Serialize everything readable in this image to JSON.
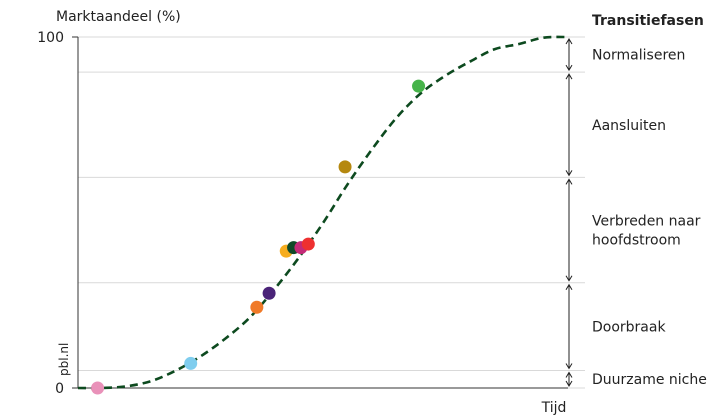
{
  "chart_data": {
    "type": "line",
    "ylabel": "Marktaandeel (%)",
    "xlabel": "Tijd",
    "y_ticks": [
      "0",
      "100"
    ],
    "ylim": [
      0,
      100
    ],
    "xlim": [
      0,
      100
    ],
    "curve": {
      "x": [
        0,
        5,
        10,
        15,
        20,
        25,
        30,
        35,
        40,
        45,
        50,
        55,
        60,
        65,
        70,
        75,
        80,
        85,
        90,
        95,
        100
      ],
      "y": [
        0,
        0,
        0.5,
        2,
        5,
        9,
        14,
        20,
        28,
        37,
        47,
        58,
        68,
        77,
        84,
        89,
        93,
        96.5,
        98,
        99.8,
        100
      ]
    },
    "points": [
      {
        "x": 4,
        "y": 0,
        "color": "#e991b9"
      },
      {
        "x": 23,
        "y": 7,
        "color": "#7fcdee"
      },
      {
        "x": 36.5,
        "y": 23,
        "color": "#f07a28"
      },
      {
        "x": 39,
        "y": 27,
        "color": "#4a2378"
      },
      {
        "x": 42.5,
        "y": 39,
        "color": "#f6ad1f"
      },
      {
        "x": 44,
        "y": 40,
        "color": "#0f4a28"
      },
      {
        "x": 45.5,
        "y": 40,
        "color": "#c42a78"
      },
      {
        "x": 47,
        "y": 41,
        "color": "#ee3030"
      },
      {
        "x": 54.5,
        "y": 63,
        "color": "#b5880f"
      },
      {
        "x": 69.5,
        "y": 86,
        "color": "#46b44a"
      }
    ],
    "phases_title": "Transitiefasen",
    "phases": [
      {
        "label": "Duurzame niche",
        "from": 0,
        "to": 5
      },
      {
        "label": "Doorbraak",
        "from": 5,
        "to": 30
      },
      {
        "label": "Verbreden naar hoofdstroom",
        "from": 30,
        "to": 60
      },
      {
        "label": "Aansluiten",
        "from": 60,
        "to": 90
      },
      {
        "label": "Normaliseren",
        "from": 90,
        "to": 100
      }
    ],
    "watermark": "pbl.nl",
    "colors": {
      "curve": "#0d4a1f",
      "axis": "#333333",
      "grid": "#d9d9d9"
    }
  }
}
